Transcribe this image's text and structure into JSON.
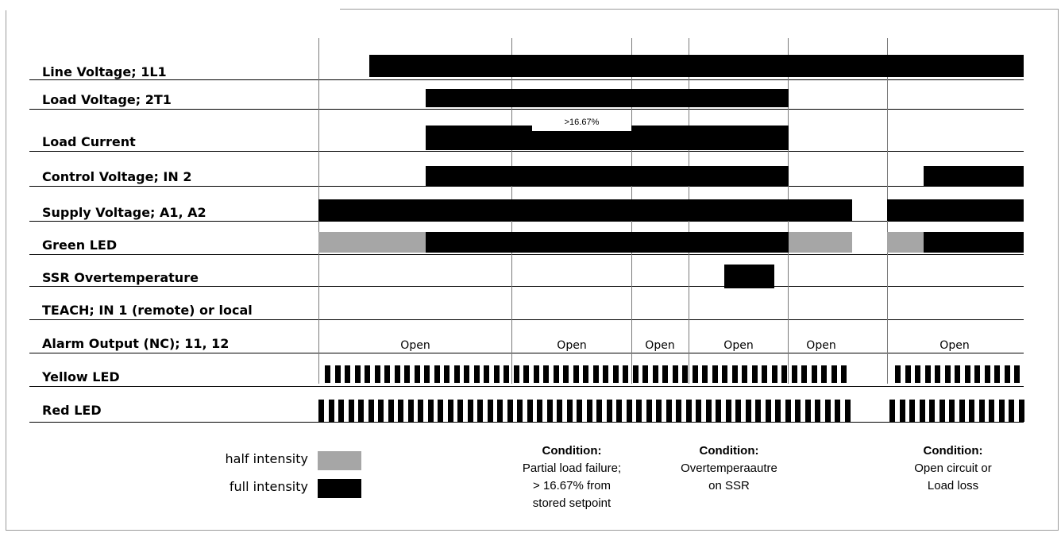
{
  "rows": [
    "Line Voltage; 1L1",
    "Load Voltage; 2T1",
    "Load Current",
    "Control Voltage; IN 2",
    "Supply Voltage; A1, A2",
    "Green LED",
    "SSR Overtemperature",
    "TEACH; IN 1 (remote) or local",
    "Alarm Output (NC); 11, 12",
    "Yellow LED",
    "Red LED"
  ],
  "load_current_annotation": ">16.67%",
  "alarm_output_labels": [
    "Open",
    "Open",
    "Open",
    "Open",
    "Open",
    "Open"
  ],
  "legend": {
    "half": "half intensity",
    "full": "full intensity",
    "half_color": "#a6a6a6",
    "full_color": "#000000"
  },
  "conditions": [
    {
      "title": "Condition:",
      "lines": [
        "Partial load failure;",
        "> 16.67% from",
        "stored setpoint"
      ]
    },
    {
      "title": "Condition:",
      "lines": [
        "Overtemperaautre",
        "on SSR"
      ]
    },
    {
      "title": "Condition:",
      "lines": [
        "Open circuit or",
        "Load loss"
      ]
    }
  ]
}
